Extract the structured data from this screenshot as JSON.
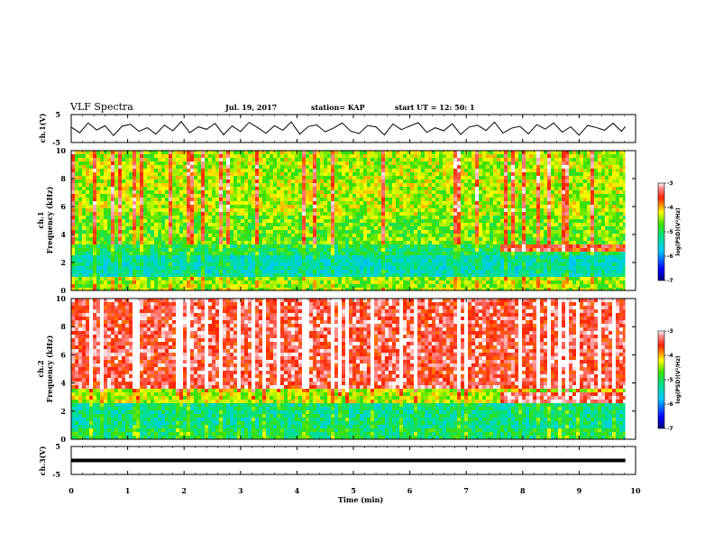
{
  "header": {
    "title": "VLF Spectra",
    "date": "Jul. 19, 2017",
    "station": "station= KAP",
    "start": "start UT = 12: 50: 1"
  },
  "chart_data": [
    {
      "type": "line",
      "panel": "ch1-waveform",
      "ylabel": "ch.1(V)",
      "ylim": [
        -5,
        5
      ],
      "yticks": [
        5,
        -5
      ],
      "xlim": [
        0,
        10
      ],
      "series": [
        {
          "color": "#000000",
          "x": [
            0.0,
            0.15,
            0.3,
            0.45,
            0.6,
            0.75,
            0.9,
            1.05,
            1.2,
            1.35,
            1.5,
            1.65,
            1.8,
            1.95,
            2.1,
            2.25,
            2.4,
            2.55,
            2.7,
            2.85,
            3.0,
            3.15,
            3.3,
            3.45,
            3.6,
            3.75,
            3.9,
            4.05,
            4.2,
            4.35,
            4.5,
            4.65,
            4.8,
            4.95,
            5.1,
            5.25,
            5.4,
            5.55,
            5.7,
            5.85,
            6.0,
            6.15,
            6.3,
            6.45,
            6.6,
            6.75,
            6.9,
            7.05,
            7.2,
            7.35,
            7.5,
            7.65,
            7.8,
            7.95,
            8.1,
            8.25,
            8.4,
            8.55,
            8.7,
            8.85,
            9.0,
            9.15,
            9.3,
            9.45,
            9.6,
            9.75,
            9.82
          ],
          "values": [
            0.5,
            -1.5,
            2.0,
            -0.5,
            1.0,
            -2.5,
            0.8,
            1.5,
            -1.0,
            0.3,
            -2.0,
            1.2,
            -0.8,
            2.5,
            -1.5,
            0.6,
            -0.3,
            1.8,
            -2.2,
            0.9,
            -1.1,
            2.2,
            0.4,
            -1.7,
            1.0,
            -0.6,
            2.4,
            -2.0,
            0.7,
            1.3,
            -1.2,
            0.2,
            2.0,
            -0.9,
            -1.8,
            1.1,
            0.6,
            -2.3,
            1.6,
            -0.4,
            0.9,
            2.1,
            -1.4,
            0.3,
            -0.8,
            1.7,
            -2.1,
            0.5,
            1.2,
            -0.7,
            2.3,
            -1.6,
            0.1,
            0.8,
            -1.9,
            1.4,
            -0.2,
            2.0,
            -1.3,
            0.6,
            -2.4,
            1.1,
            0.4,
            -0.6,
            1.9,
            -1.0,
            0.7
          ]
        }
      ]
    },
    {
      "type": "heatmap",
      "panel": "ch1-spectrogram",
      "ylabel": "ch.1\nFrequency (kHz)",
      "ylim": [
        0,
        10
      ],
      "yticks": [
        0,
        2,
        4,
        6,
        8,
        10
      ],
      "xlim": [
        0,
        9.82
      ],
      "colorbar": {
        "label": "log(PSD)(V²/Hz)",
        "range": [
          -7,
          -3
        ],
        "ticks": [
          -3,
          -4,
          -5,
          -6,
          -7
        ]
      },
      "bands": [
        {
          "f": [
            0,
            1.0
          ],
          "level": -4.5
        },
        {
          "f": [
            1.0,
            2.6
          ],
          "level": -5.4
        },
        {
          "f": [
            2.6,
            3.5
          ],
          "level": -5.0
        },
        {
          "f": [
            3.5,
            5.5
          ],
          "level": -4.6
        },
        {
          "f": [
            5.5,
            10
          ],
          "level": -4.4
        }
      ],
      "features": [
        {
          "t": [
            7.6,
            9.8
          ],
          "f": [
            2.8,
            3.5
          ],
          "level": -3.6,
          "desc": "band"
        }
      ]
    },
    {
      "type": "heatmap",
      "panel": "ch2-spectrogram",
      "ylabel": "ch.2\nFrequency (kHz)",
      "ylim": [
        0,
        10
      ],
      "yticks": [
        0,
        2,
        4,
        6,
        8,
        10
      ],
      "xlim": [
        0,
        9.82
      ],
      "colorbar": {
        "label": "log(PSD)(V²/Hz)",
        "range": [
          -7,
          -3
        ],
        "ticks": [
          -3,
          -4,
          -5,
          -6,
          -7
        ]
      },
      "bands": [
        {
          "f": [
            0,
            1.0
          ],
          "level": -5.0
        },
        {
          "f": [
            1.0,
            2.8
          ],
          "level": -5.2
        },
        {
          "f": [
            2.8,
            3.6
          ],
          "level": -4.4
        },
        {
          "f": [
            3.6,
            10
          ],
          "level": -3.4
        }
      ],
      "features": [
        {
          "t": [
            7.6,
            9.8
          ],
          "f": [
            2.8,
            3.5
          ],
          "level": -3.3,
          "desc": "band"
        }
      ]
    },
    {
      "type": "line",
      "panel": "ch3-waveform",
      "ylabel": "ch.3(V)",
      "ylim": [
        -5,
        5
      ],
      "yticks": [
        5,
        -5
      ],
      "xlim": [
        0,
        10
      ],
      "series": [
        {
          "color": "#000000",
          "x": [
            0,
            9.82
          ],
          "values": [
            0,
            0
          ]
        }
      ]
    }
  ],
  "xaxis": {
    "label": "Time (min)",
    "xlim": [
      0,
      10
    ],
    "ticks": [
      0,
      1,
      2,
      3,
      4,
      5,
      6,
      7,
      8,
      9,
      10
    ]
  }
}
